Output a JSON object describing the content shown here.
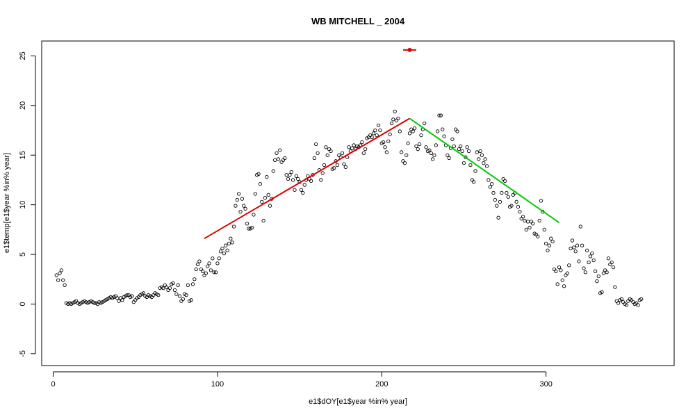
{
  "chart_data": {
    "type": "scatter",
    "title": "WB MITCHELL _ 2004",
    "xlabel": "e1$dOY[e1$year %in% year]",
    "ylabel": "e1$temp[e1$year %in% year]",
    "xlim": [
      -7,
      378
    ],
    "ylim": [
      -6.2,
      26.5
    ],
    "x_ticks": [
      0,
      100,
      200,
      300
    ],
    "y_ticks": [
      -5,
      0,
      5,
      10,
      15,
      20,
      25
    ],
    "grid": false,
    "legend": "none",
    "colors": {
      "points": "#000000",
      "rising_fit": "#dd0000",
      "falling_fit": "#00cc00",
      "marker": "#dd0000"
    },
    "points": [
      [
        2,
        2.9
      ],
      [
        3,
        2.4
      ],
      [
        4,
        3.1
      ],
      [
        5,
        3.4
      ],
      [
        6,
        2.4
      ],
      [
        7,
        1.9
      ],
      [
        8,
        0.1
      ],
      [
        9,
        0.0
      ],
      [
        10,
        0.1
      ],
      [
        11,
        0.0
      ],
      [
        12,
        0.1
      ],
      [
        13,
        0.2
      ],
      [
        14,
        0.3
      ],
      [
        15,
        0.1
      ],
      [
        16,
        0.0
      ],
      [
        17,
        0.1
      ],
      [
        18,
        0.2
      ],
      [
        19,
        0.3
      ],
      [
        20,
        0.2
      ],
      [
        21,
        0.1
      ],
      [
        22,
        0.2
      ],
      [
        23,
        0.3
      ],
      [
        24,
        0.2
      ],
      [
        25,
        0.1
      ],
      [
        26,
        0.1
      ],
      [
        27,
        0.0
      ],
      [
        28,
        0.2
      ],
      [
        29,
        0.1
      ],
      [
        30,
        0.2
      ],
      [
        31,
        0.3
      ],
      [
        32,
        0.4
      ],
      [
        33,
        0.5
      ],
      [
        34,
        0.6
      ],
      [
        35,
        0.7
      ],
      [
        36,
        0.6
      ],
      [
        37,
        0.7
      ],
      [
        38,
        0.8
      ],
      [
        39,
        0.6
      ],
      [
        40,
        0.3
      ],
      [
        41,
        0.6
      ],
      [
        42,
        0.4
      ],
      [
        43,
        0.7
      ],
      [
        44,
        0.8
      ],
      [
        45,
        0.9
      ],
      [
        46,
        0.9
      ],
      [
        47,
        0.7
      ],
      [
        48,
        0.8
      ],
      [
        49,
        0.2
      ],
      [
        50,
        0.4
      ],
      [
        51,
        0.6
      ],
      [
        52,
        0.7
      ],
      [
        53,
        0.9
      ],
      [
        54,
        1.0
      ],
      [
        55,
        1.1
      ],
      [
        56,
        0.8
      ],
      [
        57,
        0.7
      ],
      [
        58,
        0.9
      ],
      [
        59,
        0.8
      ],
      [
        60,
        0.7
      ],
      [
        61,
        0.9
      ],
      [
        62,
        1.1
      ],
      [
        63,
        1.0
      ],
      [
        64,
        0.9
      ],
      [
        65,
        1.6
      ],
      [
        66,
        1.7
      ],
      [
        67,
        1.6
      ],
      [
        68,
        1.9
      ],
      [
        69,
        1.7
      ],
      [
        70,
        1.4
      ],
      [
        71,
        1.6
      ],
      [
        72,
        2.0
      ],
      [
        73,
        2.1
      ],
      [
        74,
        1.4
      ],
      [
        75,
        1.0
      ],
      [
        76,
        1.9
      ],
      [
        77,
        0.8
      ],
      [
        78,
        0.3
      ],
      [
        79,
        0.5
      ],
      [
        80,
        1.0
      ],
      [
        81,
        0.9
      ],
      [
        82,
        1.9
      ],
      [
        83,
        0.3
      ],
      [
        84,
        0.4
      ],
      [
        85,
        2.0
      ],
      [
        86,
        2.5
      ],
      [
        87,
        3.5
      ],
      [
        88,
        4.0
      ],
      [
        89,
        4.3
      ],
      [
        90,
        3.5
      ],
      [
        91,
        3.3
      ],
      [
        92,
        2.9
      ],
      [
        93,
        3.1
      ],
      [
        94,
        3.8
      ],
      [
        95,
        4.1
      ],
      [
        96,
        3.4
      ],
      [
        97,
        4.6
      ],
      [
        98,
        3.2
      ],
      [
        99,
        3.2
      ],
      [
        100,
        4.1
      ],
      [
        101,
        4.6
      ],
      [
        102,
        5.3
      ],
      [
        103,
        5.6
      ],
      [
        104,
        5.1
      ],
      [
        105,
        5.9
      ],
      [
        106,
        5.4
      ],
      [
        107,
        6.1
      ],
      [
        108,
        6.6
      ],
      [
        109,
        6.2
      ],
      [
        110,
        7.8
      ],
      [
        111,
        9.9
      ],
      [
        112,
        10.5
      ],
      [
        113,
        11.1
      ],
      [
        114,
        9.3
      ],
      [
        115,
        10.6
      ],
      [
        116,
        9.9
      ],
      [
        117,
        9.6
      ],
      [
        118,
        8.1
      ],
      [
        119,
        7.6
      ],
      [
        120,
        7.6
      ],
      [
        121,
        7.7
      ],
      [
        122,
        9.0
      ],
      [
        123,
        11.1
      ],
      [
        124,
        13.0
      ],
      [
        125,
        13.1
      ],
      [
        126,
        12.1
      ],
      [
        127,
        10.3
      ],
      [
        128,
        8.4
      ],
      [
        129,
        10.7
      ],
      [
        130,
        12.8
      ],
      [
        131,
        11.0
      ],
      [
        132,
        9.9
      ],
      [
        133,
        10.6
      ],
      [
        134,
        13.4
      ],
      [
        135,
        14.5
      ],
      [
        136,
        15.2
      ],
      [
        137,
        14.6
      ],
      [
        138,
        15.5
      ],
      [
        139,
        14.3
      ],
      [
        140,
        14.5
      ],
      [
        141,
        14.7
      ],
      [
        142,
        13.0
      ],
      [
        143,
        12.6
      ],
      [
        144,
        13.0
      ],
      [
        145,
        13.3
      ],
      [
        146,
        12.5
      ],
      [
        147,
        11.5
      ],
      [
        148,
        12.9
      ],
      [
        149,
        12.6
      ],
      [
        150,
        12.3
      ],
      [
        151,
        11.5
      ],
      [
        152,
        11.2
      ],
      [
        153,
        12.0
      ],
      [
        154,
        12.5
      ],
      [
        155,
        12.9
      ],
      [
        156,
        12.6
      ],
      [
        157,
        12.4
      ],
      [
        158,
        13.0
      ],
      [
        159,
        14.7
      ],
      [
        160,
        16.1
      ],
      [
        161,
        15.2
      ],
      [
        162,
        13.5
      ],
      [
        163,
        12.5
      ],
      [
        164,
        13.2
      ],
      [
        165,
        14.0
      ],
      [
        166,
        15.8
      ],
      [
        167,
        15.0
      ],
      [
        168,
        15.6
      ],
      [
        169,
        15.4
      ],
      [
        170,
        13.6
      ],
      [
        171,
        13.7
      ],
      [
        172,
        14.4
      ],
      [
        173,
        14.0
      ],
      [
        174,
        15.0
      ],
      [
        175,
        14.8
      ],
      [
        176,
        15.2
      ],
      [
        177,
        14.1
      ],
      [
        178,
        13.8
      ],
      [
        179,
        14.8
      ],
      [
        180,
        15.8
      ],
      [
        181,
        15.4
      ],
      [
        182,
        15.7
      ],
      [
        183,
        16.0
      ],
      [
        184,
        15.6
      ],
      [
        185,
        15.9
      ],
      [
        186,
        15.8
      ],
      [
        187,
        16.0
      ],
      [
        188,
        16.3
      ],
      [
        189,
        15.2
      ],
      [
        190,
        15.6
      ],
      [
        191,
        16.7
      ],
      [
        192,
        16.8
      ],
      [
        193,
        17.0
      ],
      [
        194,
        16.8
      ],
      [
        195,
        17.2
      ],
      [
        196,
        17.5
      ],
      [
        197,
        17.0
      ],
      [
        198,
        18.0
      ],
      [
        199,
        17.5
      ],
      [
        200,
        16.2
      ],
      [
        201,
        16.3
      ],
      [
        202,
        15.8
      ],
      [
        203,
        15.3
      ],
      [
        204,
        16.4
      ],
      [
        205,
        17.1
      ],
      [
        206,
        18.2
      ],
      [
        207,
        18.6
      ],
      [
        208,
        19.4
      ],
      [
        209,
        18.5
      ],
      [
        210,
        18.7
      ],
      [
        211,
        17.4
      ],
      [
        212,
        15.3
      ],
      [
        213,
        14.4
      ],
      [
        214,
        14.2
      ],
      [
        215,
        15.0
      ],
      [
        216,
        16.2
      ],
      [
        217,
        17.2
      ],
      [
        218,
        17.6
      ],
      [
        219,
        17.4
      ],
      [
        220,
        17.7
      ],
      [
        221,
        15.9
      ],
      [
        222,
        15.6
      ],
      [
        223,
        16.1
      ],
      [
        224,
        17.0
      ],
      [
        225,
        17.6
      ],
      [
        226,
        18.2
      ],
      [
        227,
        15.8
      ],
      [
        228,
        15.4
      ],
      [
        229,
        15.5
      ],
      [
        230,
        15.2
      ],
      [
        231,
        14.6
      ],
      [
        232,
        15.0
      ],
      [
        233,
        16.0
      ],
      [
        234,
        17.4
      ],
      [
        235,
        19.0
      ],
      [
        236,
        19.0
      ],
      [
        237,
        17.6
      ],
      [
        238,
        16.9
      ],
      [
        239,
        16.0
      ],
      [
        240,
        15.0
      ],
      [
        241,
        14.7
      ],
      [
        242,
        15.7
      ],
      [
        243,
        16.6
      ],
      [
        244,
        15.9
      ],
      [
        245,
        17.6
      ],
      [
        246,
        17.4
      ],
      [
        247,
        15.6
      ],
      [
        248,
        15.9
      ],
      [
        249,
        15.4
      ],
      [
        250,
        14.2
      ],
      [
        251,
        14.8
      ],
      [
        252,
        15.8
      ],
      [
        253,
        15.4
      ],
      [
        254,
        14.0
      ],
      [
        255,
        12.5
      ],
      [
        256,
        12.3
      ],
      [
        257,
        13.4
      ],
      [
        258,
        15.3
      ],
      [
        259,
        14.6
      ],
      [
        260,
        15.4
      ],
      [
        261,
        15.0
      ],
      [
        262,
        14.2
      ],
      [
        263,
        14.6
      ],
      [
        264,
        13.9
      ],
      [
        265,
        12.5
      ],
      [
        266,
        11.8
      ],
      [
        267,
        12.1
      ],
      [
        268,
        11.2
      ],
      [
        269,
        10.5
      ],
      [
        270,
        9.9
      ],
      [
        271,
        8.7
      ],
      [
        272,
        10.3
      ],
      [
        273,
        11.2
      ],
      [
        274,
        12.6
      ],
      [
        275,
        12.4
      ],
      [
        276,
        11.2
      ],
      [
        277,
        10.8
      ],
      [
        278,
        9.8
      ],
      [
        279,
        9.9
      ],
      [
        280,
        11.0
      ],
      [
        281,
        11.2
      ],
      [
        282,
        10.3
      ],
      [
        283,
        9.8
      ],
      [
        284,
        9.3
      ],
      [
        285,
        8.6
      ],
      [
        286,
        8.8
      ],
      [
        287,
        8.4
      ],
      [
        288,
        7.5
      ],
      [
        289,
        8.3
      ],
      [
        290,
        7.7
      ],
      [
        291,
        8.3
      ],
      [
        292,
        8.1
      ],
      [
        293,
        7.1
      ],
      [
        294,
        7.0
      ],
      [
        295,
        6.8
      ],
      [
        296,
        8.4
      ],
      [
        297,
        10.4
      ],
      [
        298,
        9.3
      ],
      [
        299,
        7.5
      ],
      [
        300,
        6.1
      ],
      [
        301,
        5.4
      ],
      [
        302,
        5.9
      ],
      [
        303,
        6.6
      ],
      [
        304,
        6.3
      ],
      [
        305,
        3.5
      ],
      [
        306,
        3.3
      ],
      [
        307,
        2.0
      ],
      [
        308,
        3.7
      ],
      [
        309,
        3.4
      ],
      [
        310,
        2.4
      ],
      [
        311,
        1.8
      ],
      [
        312,
        2.9
      ],
      [
        313,
        3.1
      ],
      [
        314,
        3.9
      ],
      [
        315,
        5.6
      ],
      [
        316,
        6.4
      ],
      [
        317,
        5.7
      ],
      [
        318,
        5.3
      ],
      [
        319,
        5.9
      ],
      [
        320,
        4.3
      ],
      [
        321,
        7.8
      ],
      [
        322,
        5.9
      ],
      [
        323,
        3.6
      ],
      [
        324,
        3.2
      ],
      [
        325,
        5.4
      ],
      [
        326,
        4.2
      ],
      [
        327,
        4.8
      ],
      [
        328,
        5.1
      ],
      [
        329,
        4.4
      ],
      [
        330,
        3.3
      ],
      [
        331,
        2.3
      ],
      [
        332,
        2.8
      ],
      [
        333,
        1.1
      ],
      [
        334,
        1.2
      ],
      [
        335,
        3.1
      ],
      [
        336,
        3.4
      ],
      [
        337,
        3.2
      ],
      [
        338,
        4.6
      ],
      [
        339,
        4.0
      ],
      [
        340,
        4.2
      ],
      [
        341,
        3.7
      ],
      [
        342,
        1.7
      ],
      [
        343,
        0.3
      ],
      [
        344,
        0.1
      ],
      [
        345,
        0.4
      ],
      [
        346,
        0.5
      ],
      [
        347,
        0.2
      ],
      [
        348,
        0.0
      ],
      [
        349,
        -0.1
      ],
      [
        350,
        0.3
      ],
      [
        351,
        0.5
      ],
      [
        352,
        0.4
      ],
      [
        353,
        0.2
      ],
      [
        354,
        0.0
      ],
      [
        355,
        0.1
      ],
      [
        356,
        -0.1
      ],
      [
        357,
        0.4
      ],
      [
        358,
        0.5
      ]
    ],
    "fits": [
      {
        "color": "#dd0000",
        "x": [
          92,
          217
        ],
        "y": [
          6.6,
          18.7
        ]
      },
      {
        "color": "#00cc00",
        "x": [
          217,
          308
        ],
        "y": [
          18.7,
          8.2
        ]
      }
    ],
    "marker": {
      "color": "#dd0000",
      "x": 217,
      "y": 25.6,
      "xrange": [
        213,
        221
      ]
    }
  }
}
